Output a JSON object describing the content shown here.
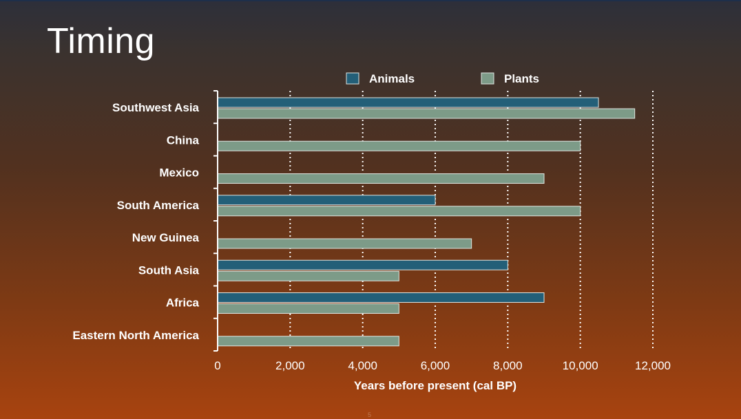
{
  "slide": {
    "title": "Timing",
    "page_number": "5"
  },
  "colors": {
    "animals": "#235f78",
    "plants": "#7d9b88",
    "axis": "#ffffff",
    "grid": "#ffffff"
  },
  "chart_data": {
    "type": "bar",
    "orientation": "horizontal",
    "categories": [
      "Southwest Asia",
      "China",
      "Mexico",
      "South America",
      "New Guinea",
      "South Asia",
      "Africa",
      "Eastern North America"
    ],
    "series": [
      {
        "name": "Animals",
        "values": [
          10500,
          null,
          null,
          6000,
          null,
          8000,
          9000,
          null
        ]
      },
      {
        "name": "Plants",
        "values": [
          11500,
          10000,
          9000,
          10000,
          7000,
          5000,
          5000,
          5000
        ]
      }
    ],
    "xlabel": "Years before present (cal BP)",
    "ylabel": "",
    "xlim": [
      0,
      12000
    ],
    "xticks": [
      0,
      2000,
      4000,
      6000,
      8000,
      10000,
      12000
    ],
    "xtick_labels": [
      "0",
      "2,000",
      "4,000",
      "6,000",
      "8,000",
      "10,000",
      "12,000"
    ],
    "grid": "vertical dotted",
    "legend_position": "top-center"
  }
}
